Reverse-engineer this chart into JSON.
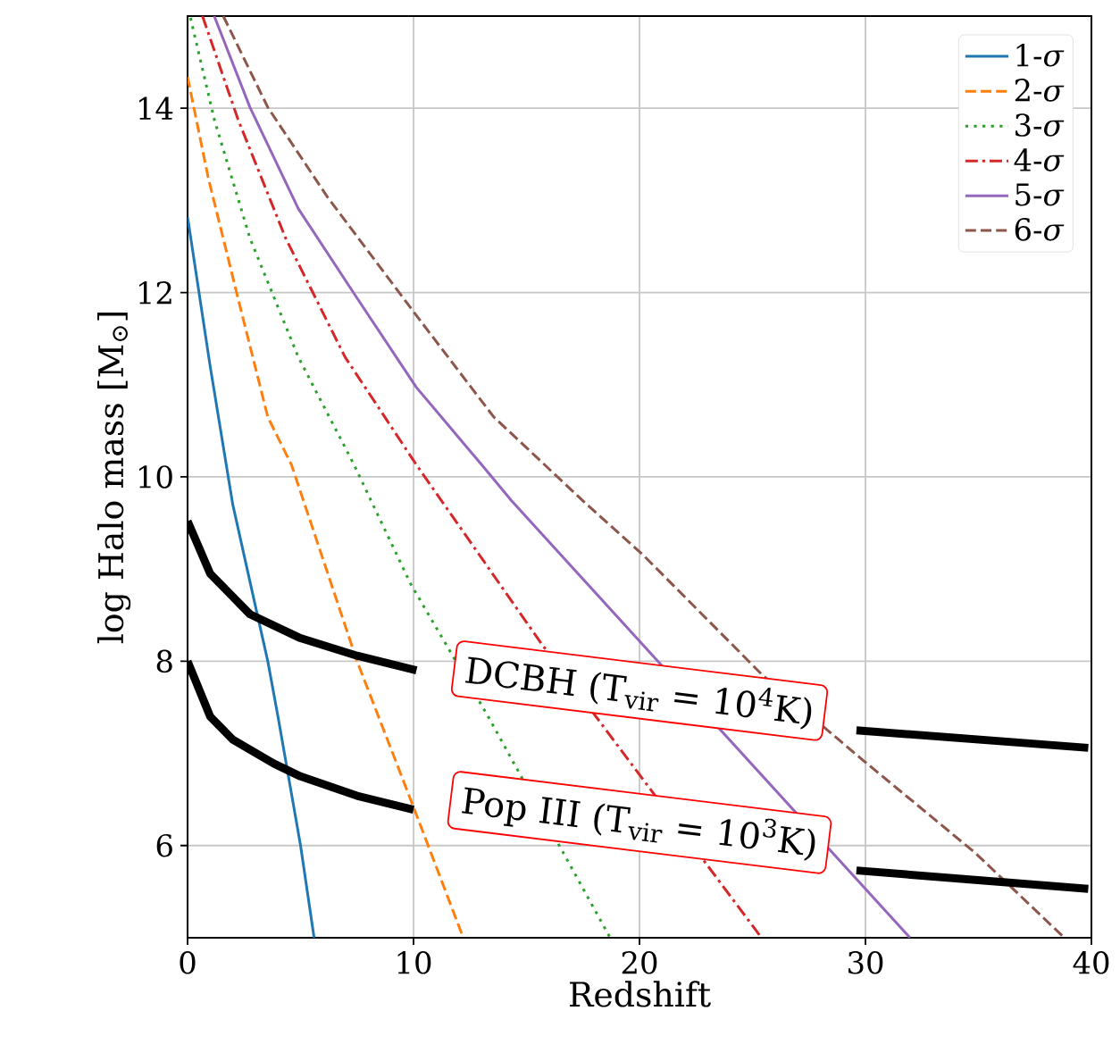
{
  "chart_data": {
    "type": "line",
    "xlabel": "Redshift",
    "ylabel": "log Halo mass [M$_{⊙}$]",
    "xlim": [
      0,
      40
    ],
    "ylim": [
      5,
      15
    ],
    "xticks": [
      0,
      10,
      20,
      30,
      40
    ],
    "yticks": [
      6,
      8,
      10,
      12,
      14
    ],
    "grid": true,
    "legend": "top right",
    "series": [
      {
        "name": "1-*σ*",
        "color": "#1f77b4",
        "line_style": "solid",
        "x": [
          0,
          1,
          2,
          3,
          3.55,
          4,
          5,
          5.6
        ],
        "values": [
          12.82,
          11.2,
          9.7,
          8.6,
          8.0,
          7.4,
          6.0,
          5.0
        ]
      },
      {
        "name": "2-*σ*",
        "color": "#ff7f0e",
        "line_style": "dashed",
        "x": [
          0,
          0.92,
          2.23,
          3.55,
          4.6,
          7.5,
          9.87,
          12.2
        ],
        "values": [
          14.34,
          13.24,
          11.94,
          10.65,
          10.13,
          8.0,
          6.5,
          5.0
        ]
      },
      {
        "name": "3-*σ*",
        "color": "#2ca02c",
        "line_style": "dotted",
        "x": [
          0.13,
          1.18,
          2.76,
          4.9,
          7.37,
          9.87,
          13.28,
          18.7
        ],
        "values": [
          14.98,
          13.88,
          12.59,
          11.3,
          10.13,
          8.84,
          7.41,
          5.0
        ]
      },
      {
        "name": "4-*σ*",
        "color": "#d62728",
        "line_style": "dashdot",
        "x": [
          0.66,
          2.23,
          4.34,
          6.97,
          10.13,
          15.66,
          25.4
        ],
        "values": [
          15,
          13.88,
          12.59,
          11.3,
          10.13,
          8.19,
          5.0
        ]
      },
      {
        "name": "5-*σ*",
        "color": "#9467bd",
        "line_style": "solid",
        "x": [
          1.18,
          2.76,
          4.9,
          7.5,
          10.13,
          13.02,
          14.34,
          31.97
        ],
        "values": [
          15,
          14.01,
          12.91,
          11.94,
          10.97,
          10.13,
          9.74,
          5.0
        ]
      },
      {
        "name": "6-*σ*",
        "color": "#8c564b",
        "line_style": "dashed",
        "x": [
          1.58,
          3.55,
          6.18,
          10.13,
          13.55,
          17.5,
          20.13,
          25.4,
          29.87,
          34.86,
          38.8
        ],
        "values": [
          15,
          14.01,
          13.04,
          11.75,
          10.65,
          9.74,
          9.16,
          7.86,
          6.93,
          5.92,
          5.0
        ]
      },
      {
        "color": "#000000",
        "line_style": "solid",
        "x": [
          0,
          1,
          2.76,
          5,
          7.5,
          10.13,
          20,
          29.6,
          39.86
        ],
        "values": [
          9.52,
          8.95,
          8.51,
          8.25,
          8.06,
          7.9,
          null,
          7.25,
          7.06
        ]
      },
      {
        "color": "#000000",
        "line_style": "solid",
        "x": [
          0,
          1,
          2,
          3.81,
          5,
          7.5,
          10.0,
          20,
          29.6,
          39.86
        ],
        "values": [
          8.0,
          7.4,
          7.15,
          6.89,
          6.75,
          6.54,
          6.39,
          null,
          5.73,
          5.53
        ]
      }
    ],
    "annotations": [
      "DCBH (T$_{vir}$ = 10$^{4}$K)",
      "Pop III (T$_{vir}$ = 10$^{3}$K)"
    ]
  }
}
